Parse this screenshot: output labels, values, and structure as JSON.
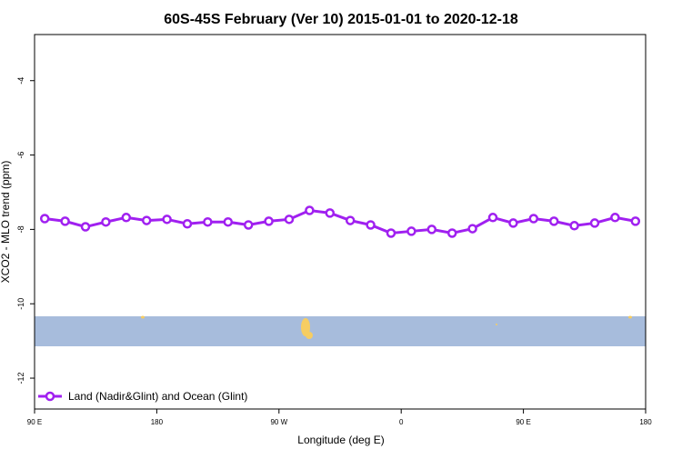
{
  "chart_data": {
    "type": "line",
    "title": "60S-45S February (Ver 10)   2015-01-01 to 2020-12-18",
    "x_label": "Longitude (deg E)",
    "y_label": "XCO2 - MLO trend (ppm)",
    "x": [
      97.5,
      112.5,
      127.5,
      142.5,
      157.5,
      172.5,
      187.5,
      202.5,
      217.5,
      232.5,
      247.5,
      262.5,
      277.5,
      292.5,
      307.5,
      322.5,
      337.5,
      352.5,
      367.5,
      382.5,
      397.5,
      412.5,
      427.5,
      442.5,
      457.5,
      472.5,
      487.5,
      502.5,
      517.5,
      532.5
    ],
    "series": [
      {
        "name": "Land (Nadir&Glint) and Ocean (Glint)",
        "color": "#a020f0",
        "values": [
          -7.71,
          -7.78,
          -7.93,
          -7.8,
          -7.68,
          -7.76,
          -7.73,
          -7.85,
          -7.8,
          -7.8,
          -7.88,
          -7.78,
          -7.73,
          -7.49,
          -7.56,
          -7.76,
          -7.88,
          -8.1,
          -8.05,
          -8.0,
          -8.1,
          -7.98,
          -7.68,
          -7.83,
          -7.71,
          -7.78,
          -7.9,
          -7.83,
          -7.68,
          -7.78
        ]
      }
    ],
    "xlim": [
      90,
      540
    ],
    "xticks": [
      {
        "value": 90,
        "label": "90 E"
      },
      180,
      {
        "value": 270,
        "label": "90 W"
      },
      0,
      {
        "value": 450,
        "label": "90 E"
      },
      {
        "value": 540,
        "label": "180"
      }
    ],
    "ylim": [
      -12.83,
      -2.76
    ],
    "yticks": [
      -12,
      -10,
      -8,
      -6,
      -4
    ],
    "legend": "bottom-left"
  }
}
